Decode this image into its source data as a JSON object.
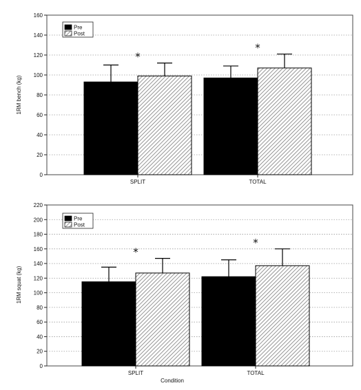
{
  "chart_data": [
    {
      "type": "bar",
      "categories": [
        "SPLIT",
        "TOTAL"
      ],
      "series": [
        {
          "name": "Pre",
          "values": [
            93,
            97
          ],
          "errors": [
            17,
            12
          ]
        },
        {
          "name": "Post",
          "values": [
            99,
            107
          ],
          "errors": [
            13,
            14
          ]
        }
      ],
      "significance_marker": "*",
      "significance_on": [
        "SPLIT",
        "TOTAL"
      ],
      "xlabel": "",
      "ylabel": "1RM bench (kg)",
      "ylim": [
        0,
        160
      ],
      "yticks": [
        0,
        20,
        40,
        60,
        80,
        100,
        120,
        140,
        160
      ],
      "grid": "horizontal dotted",
      "legend": {
        "position": "top-left",
        "entries": [
          "Pre",
          "Post"
        ]
      },
      "colors": {
        "Pre": "#000000",
        "Post": "hatched gray"
      }
    },
    {
      "type": "bar",
      "categories": [
        "SPLIT",
        "TOTAL"
      ],
      "series": [
        {
          "name": "Pre",
          "values": [
            115,
            122
          ],
          "errors": [
            20,
            23
          ]
        },
        {
          "name": "Post",
          "values": [
            127,
            137
          ],
          "errors": [
            20,
            23
          ]
        }
      ],
      "significance_marker": "*",
      "significance_on": [
        "SPLIT",
        "TOTAL"
      ],
      "xlabel": "Condition",
      "ylabel": "1RM squat (kg)",
      "ylim": [
        0,
        220
      ],
      "yticks": [
        0,
        20,
        40,
        60,
        80,
        100,
        120,
        140,
        160,
        180,
        200,
        220
      ],
      "grid": "horizontal dotted",
      "legend": {
        "position": "top-left",
        "entries": [
          "Pre",
          "Post"
        ]
      },
      "colors": {
        "Pre": "#000000",
        "Post": "hatched gray"
      }
    }
  ]
}
